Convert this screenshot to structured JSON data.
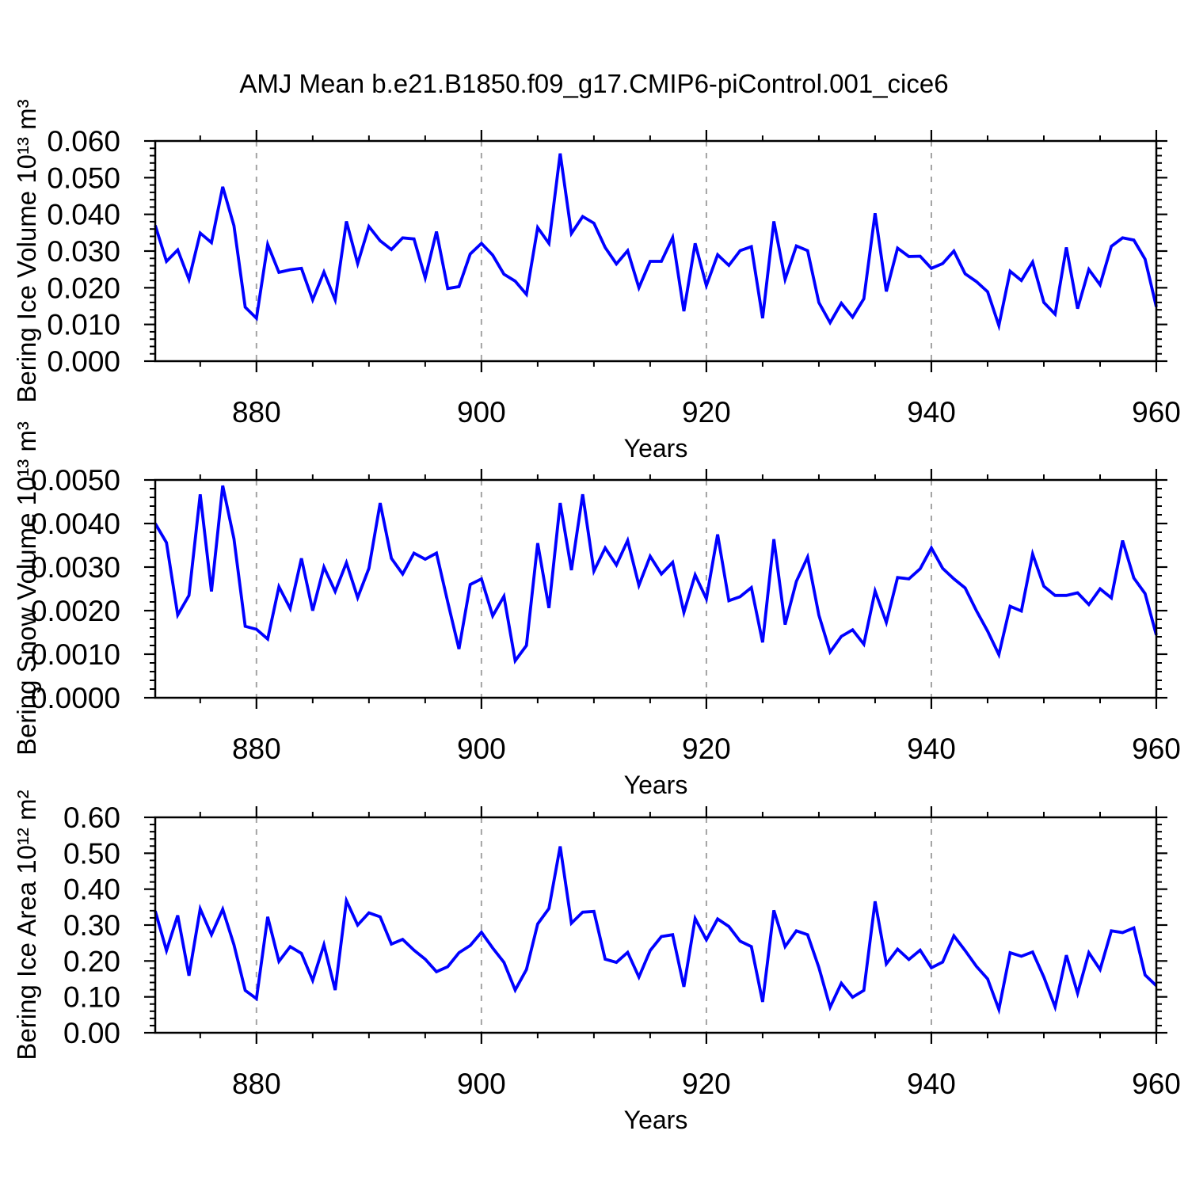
{
  "title": "AMJ Mean b.e21.B1850.f09_g17.CMIP6-piControl.001_cice6",
  "styles": {
    "line_color": "#0000ff",
    "axis_color": "#000000",
    "grid_color": "#a3a3a3",
    "background": "#ffffff",
    "text_color": "#000000"
  },
  "x_axis": {
    "label": "Years",
    "range": [
      871,
      960
    ],
    "major_ticks": [
      880,
      900,
      920,
      940,
      960
    ],
    "tick_labels": [
      "880",
      "900",
      "920",
      "940",
      "960"
    ],
    "minor_tick_step": 5,
    "grid_years": [
      880,
      900,
      920,
      940
    ],
    "years": [
      871,
      872,
      873,
      874,
      875,
      876,
      877,
      878,
      879,
      880,
      881,
      882,
      883,
      884,
      885,
      886,
      887,
      888,
      889,
      890,
      891,
      892,
      893,
      894,
      895,
      896,
      897,
      898,
      899,
      900,
      901,
      902,
      903,
      904,
      905,
      906,
      907,
      908,
      909,
      910,
      911,
      912,
      913,
      914,
      915,
      916,
      917,
      918,
      919,
      920,
      921,
      922,
      923,
      924,
      925,
      926,
      927,
      928,
      929,
      930,
      931,
      932,
      933,
      934,
      935,
      936,
      937,
      938,
      939,
      940,
      941,
      942,
      943,
      944,
      945,
      946,
      947,
      948,
      949,
      950,
      951,
      952,
      953,
      954,
      955,
      956,
      957,
      958,
      959,
      960
    ]
  },
  "chart_data": [
    {
      "type": "line",
      "name": "Bering Ice Volume",
      "ylabel": "Bering Ice Volume 10¹³ m³",
      "ylim": [
        0,
        0.06
      ],
      "y_major_values": [
        0.0,
        0.01,
        0.02,
        0.03,
        0.04,
        0.05,
        0.06
      ],
      "y_tick_labels": [
        "0.000",
        "0.010",
        "0.020",
        "0.030",
        "0.040",
        "0.050",
        "0.060"
      ],
      "y_minor_step": 0.002,
      "grid": "vertical-dashed",
      "legend": "none",
      "values": [
        0.037,
        0.0272,
        0.0303,
        0.0223,
        0.0349,
        0.0323,
        0.0475,
        0.0369,
        0.0147,
        0.0117,
        0.0318,
        0.0242,
        0.0249,
        0.0253,
        0.0167,
        0.0243,
        0.0167,
        0.0381,
        0.0266,
        0.0367,
        0.0328,
        0.0304,
        0.0336,
        0.0333,
        0.0227,
        0.0353,
        0.0198,
        0.0203,
        0.0292,
        0.0321,
        0.0289,
        0.0237,
        0.0218,
        0.0182,
        0.0364,
        0.0321,
        0.0566,
        0.0348,
        0.0394,
        0.0376,
        0.031,
        0.0265,
        0.0301,
        0.02,
        0.0272,
        0.0272,
        0.0337,
        0.0136,
        0.0321,
        0.0206,
        0.029,
        0.0261,
        0.0301,
        0.0312,
        0.0117,
        0.0381,
        0.0223,
        0.0314,
        0.0301,
        0.016,
        0.0105,
        0.0158,
        0.012,
        0.017,
        0.0403,
        0.019,
        0.0308,
        0.0285,
        0.0286,
        0.0253,
        0.0266,
        0.03,
        0.0238,
        0.0217,
        0.0189,
        0.0097,
        0.0245,
        0.022,
        0.027,
        0.016,
        0.0128,
        0.031,
        0.0143,
        0.025,
        0.0208,
        0.0313,
        0.0336,
        0.033,
        0.0278,
        0.0148
      ]
    },
    {
      "type": "line",
      "name": "Bering Snow Volume",
      "ylabel": "Bering Snow Volume 10¹³ m³",
      "ylim": [
        0,
        0.005
      ],
      "y_major_values": [
        0.0,
        0.001,
        0.002,
        0.003,
        0.004,
        0.005
      ],
      "y_tick_labels": [
        "0.0000",
        "0.0010",
        "0.0020",
        "0.0030",
        "0.0040",
        "0.0050"
      ],
      "y_minor_step": 0.0002,
      "grid": "vertical-dashed",
      "legend": "none",
      "values": [
        0.004,
        0.00356,
        0.0019,
        0.00235,
        0.00467,
        0.00244,
        0.00487,
        0.00365,
        0.00164,
        0.00157,
        0.00135,
        0.00255,
        0.00205,
        0.0032,
        0.002,
        0.003,
        0.00244,
        0.0031,
        0.0023,
        0.00297,
        0.00447,
        0.0032,
        0.00284,
        0.00332,
        0.00318,
        0.00332,
        0.0022,
        0.00112,
        0.0026,
        0.00273,
        0.00188,
        0.00233,
        0.00085,
        0.0012,
        0.00355,
        0.00206,
        0.00447,
        0.00293,
        0.00467,
        0.00291,
        0.00344,
        0.00305,
        0.00361,
        0.00258,
        0.00325,
        0.00284,
        0.00311,
        0.00196,
        0.00282,
        0.00227,
        0.00375,
        0.00223,
        0.00232,
        0.00253,
        0.00127,
        0.00364,
        0.00168,
        0.00267,
        0.00323,
        0.0019,
        0.00105,
        0.00141,
        0.00156,
        0.00123,
        0.00245,
        0.00173,
        0.00276,
        0.00273,
        0.00296,
        0.00344,
        0.00297,
        0.00273,
        0.00252,
        0.002,
        0.00153,
        0.00099,
        0.0021,
        0.00199,
        0.0033,
        0.00256,
        0.00235,
        0.00235,
        0.00241,
        0.00214,
        0.0025,
        0.00229,
        0.00361,
        0.00275,
        0.00239,
        0.00144
      ]
    },
    {
      "type": "line",
      "name": "Bering Ice Area",
      "ylabel": "Bering Ice Area 10¹² m²",
      "ylim": [
        0,
        0.6
      ],
      "y_major_values": [
        0.0,
        0.1,
        0.2,
        0.3,
        0.4,
        0.5,
        0.6
      ],
      "y_tick_labels": [
        "0.00",
        "0.10",
        "0.20",
        "0.30",
        "0.40",
        "0.50",
        "0.60"
      ],
      "y_minor_step": 0.02,
      "grid": "vertical-dashed",
      "legend": "none",
      "values": [
        0.339,
        0.229,
        0.327,
        0.159,
        0.345,
        0.273,
        0.344,
        0.245,
        0.118,
        0.095,
        0.323,
        0.199,
        0.24,
        0.221,
        0.146,
        0.245,
        0.119,
        0.368,
        0.3,
        0.334,
        0.323,
        0.247,
        0.26,
        0.23,
        0.205,
        0.17,
        0.184,
        0.223,
        0.243,
        0.28,
        0.236,
        0.196,
        0.119,
        0.176,
        0.303,
        0.346,
        0.519,
        0.305,
        0.336,
        0.338,
        0.205,
        0.196,
        0.224,
        0.155,
        0.229,
        0.268,
        0.273,
        0.128,
        0.318,
        0.259,
        0.317,
        0.296,
        0.255,
        0.24,
        0.086,
        0.341,
        0.24,
        0.284,
        0.273,
        0.182,
        0.071,
        0.138,
        0.099,
        0.118,
        0.366,
        0.192,
        0.233,
        0.204,
        0.23,
        0.181,
        0.197,
        0.27,
        0.229,
        0.185,
        0.15,
        0.065,
        0.223,
        0.213,
        0.225,
        0.155,
        0.072,
        0.216,
        0.11,
        0.223,
        0.176,
        0.284,
        0.279,
        0.292,
        0.161,
        0.131
      ]
    }
  ]
}
